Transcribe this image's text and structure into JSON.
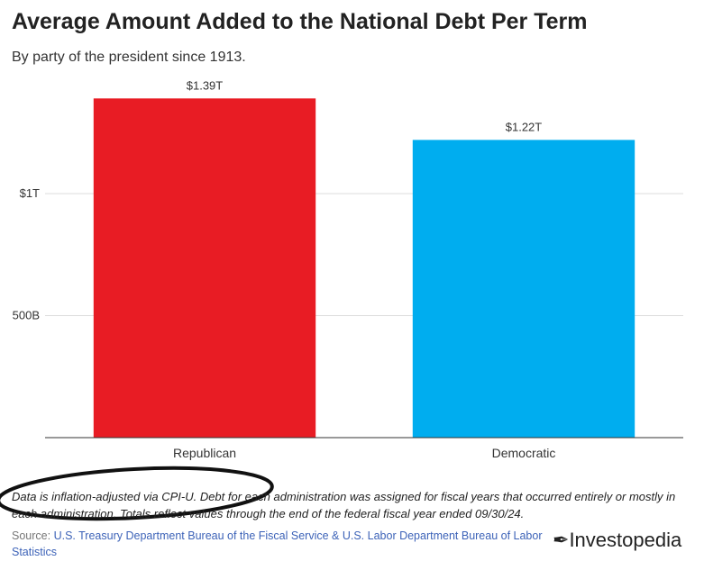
{
  "chart_data": {
    "type": "bar",
    "title": "Average Amount Added to the National Debt Per Term",
    "subtitle": "By party of the president since 1913.",
    "categories": [
      "Republican",
      "Democratic"
    ],
    "values": [
      1.39,
      1.22
    ],
    "value_labels": [
      "$1.39T",
      "$1.22T"
    ],
    "colors": [
      "#e81c24",
      "#00adef"
    ],
    "ylim": [
      0,
      1.5
    ],
    "yticks": [
      {
        "value": 0.5,
        "label": "500B"
      },
      {
        "value": 1,
        "label": "$1T"
      }
    ],
    "grid": true,
    "note": "Data is inflation-adjusted via CPI-U. Debt for each administration was assigned for fiscal years that occurred entirely or mostly in each administration. Totals reflect values through the end of the federal fiscal year ended 09/30/24.",
    "source_label": "Source:",
    "source_text": "U.S. Treasury Department Bureau of the Fiscal Service & U.S. Labor Department Bureau of Labor Statistics",
    "brand": "Investopedia"
  }
}
